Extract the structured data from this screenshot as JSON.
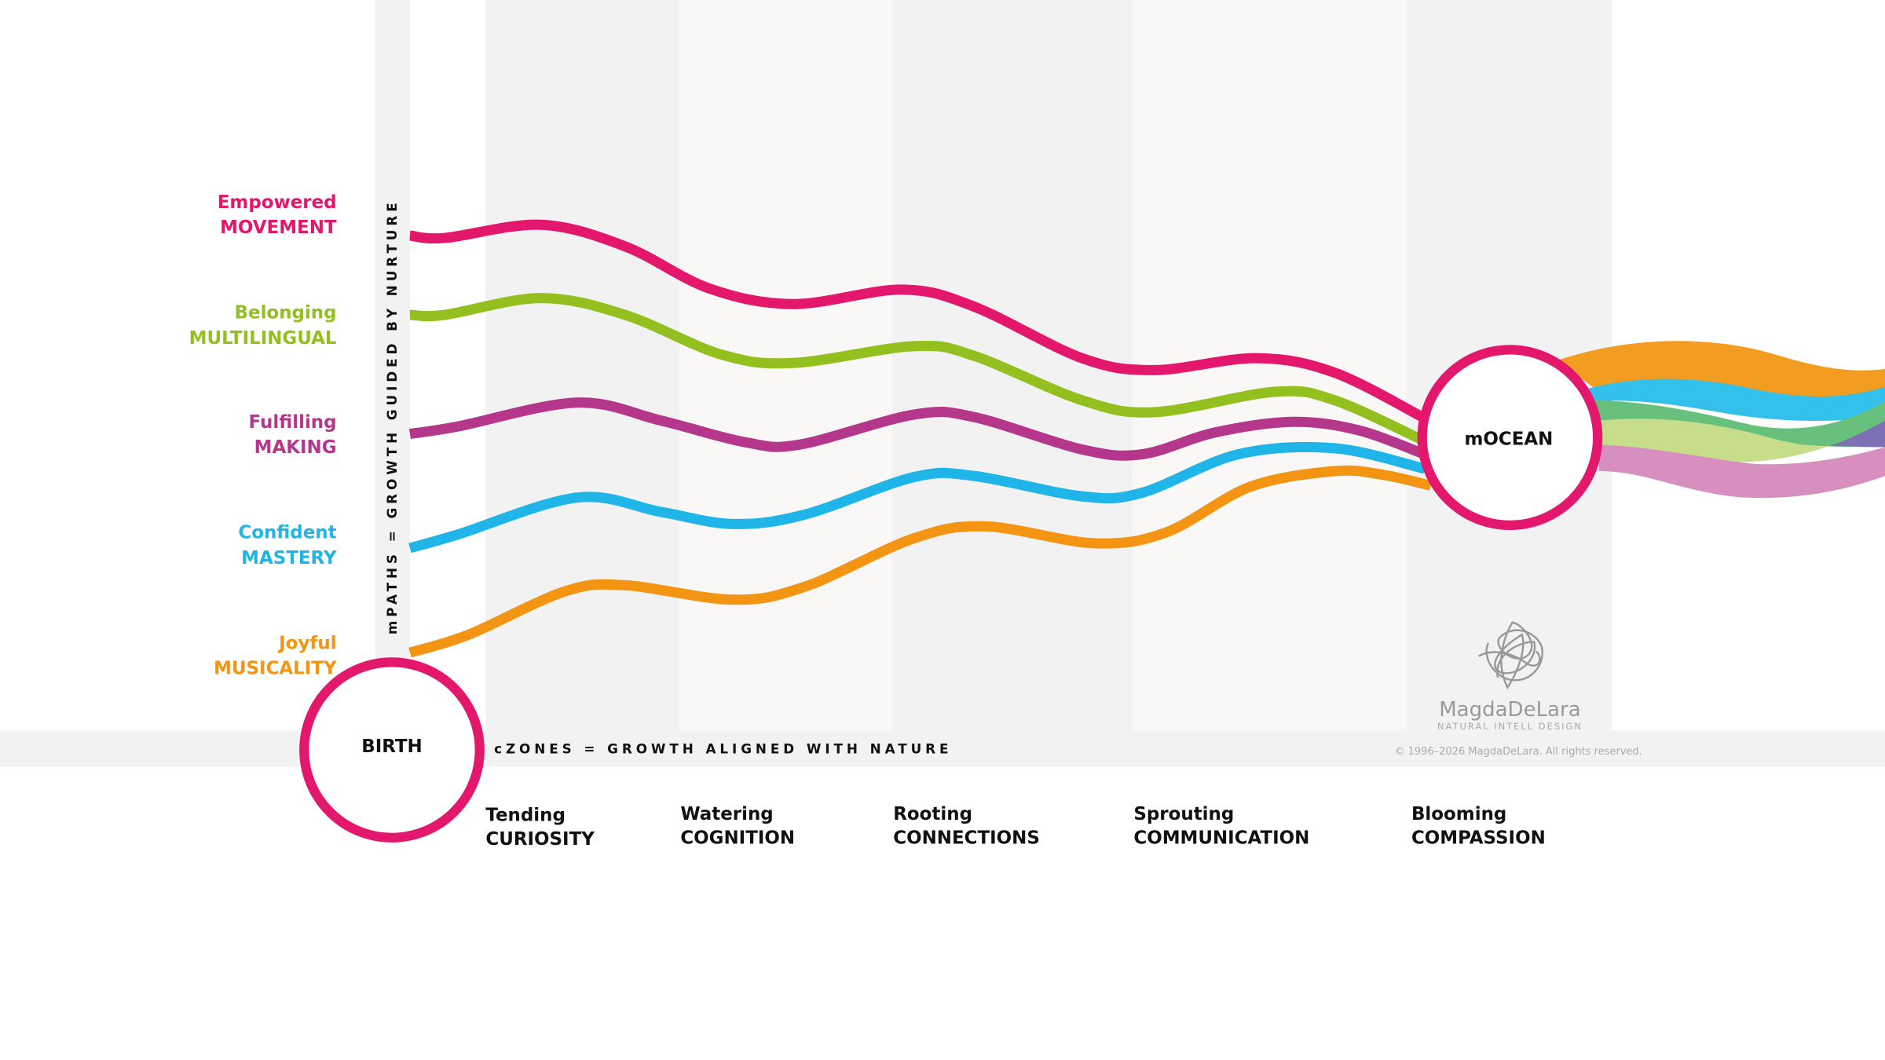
{
  "paths": [
    {
      "adjective": "Empowered",
      "name": "MOVEMENT",
      "color": "#e3176c"
    },
    {
      "adjective": "Belonging",
      "name": "MULTILINGUAL",
      "color": "#93c01f"
    },
    {
      "adjective": "Fulfilling",
      "name": "MAKING",
      "color": "#b5378c"
    },
    {
      "adjective": "Confident",
      "name": "MASTERY",
      "color": "#1fb5e8"
    },
    {
      "adjective": "Joyful",
      "name": "MUSICALITY",
      "color": "#f39412"
    }
  ],
  "mpaths_caption": "mPATHS = GROWTH GUIDED BY NURTURE",
  "czones_caption": "cZONES = GROWTH ALIGNED WITH NATURE",
  "zones": [
    {
      "verb": "Tending",
      "name": "CURIOSITY"
    },
    {
      "verb": "Watering",
      "name": "COGNITION"
    },
    {
      "verb": "Rooting",
      "name": "CONNECTIONS"
    },
    {
      "verb": "Sprouting",
      "name": "COMMUNICATION"
    },
    {
      "verb": "Blooming",
      "name": "COMPASSION"
    }
  ],
  "start_node": "BIRTH",
  "end_node": "mOCEAN",
  "logo": {
    "name": "MagdaDeLara",
    "tagline": "NATURAL INTELL DESIGN"
  },
  "copyright": "© 1996–2026 MagdaDeLara. All rights reserved."
}
